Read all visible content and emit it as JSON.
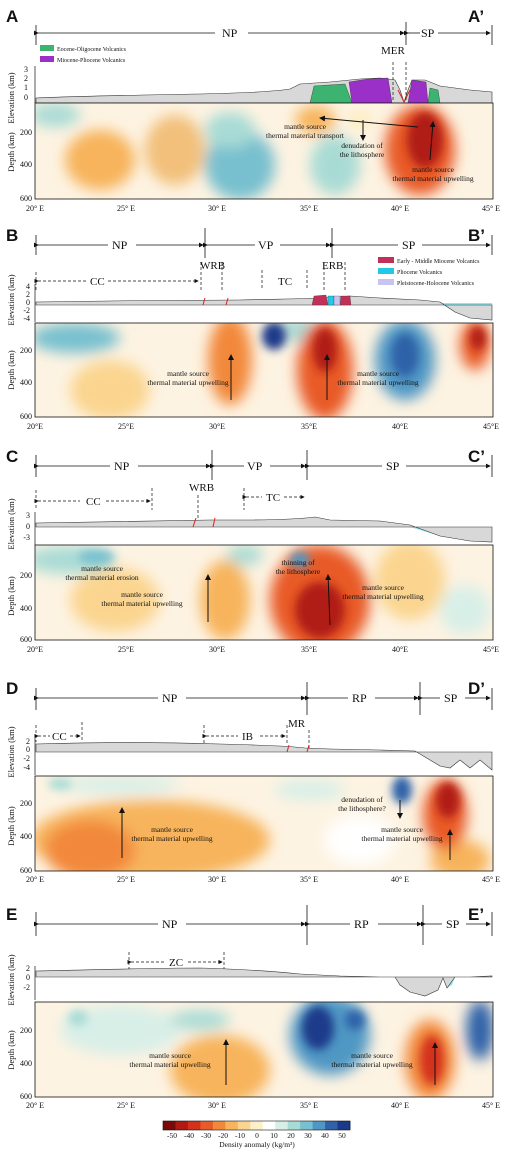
{
  "colorbar": {
    "ticks": [
      "-50",
      "-40",
      "-30",
      "-20",
      "-10",
      "0",
      "10",
      "20",
      "30",
      "40",
      "50"
    ],
    "label": "Density anomaly (kg/m³)",
    "colors": [
      "#7a0a0a",
      "#b01a12",
      "#d3311a",
      "#e85a26",
      "#f2883a",
      "#f7b45c",
      "#fbd590",
      "#fdefc8",
      "#ffffff",
      "#d8efe8",
      "#a9dbd5",
      "#78c0cf",
      "#4f97c4",
      "#2f62a8",
      "#1b3a8a"
    ]
  },
  "panels": [
    {
      "letter": "A",
      "letter_end": "A’",
      "provinces": [
        {
          "name": "NP"
        },
        {
          "name": "SP"
        }
      ],
      "domains": [
        {
          "name": "MER"
        }
      ],
      "legend": [
        {
          "label": "Eocene-Oligocene Volcanics",
          "color": "#3cb371"
        },
        {
          "label": "Miocene-Pliocene Volcanics",
          "color": "#9b30c8"
        }
      ],
      "elev_label": "Elevation (km)",
      "elev_ticks": [
        "3",
        "2",
        "1",
        "0"
      ],
      "depth_label": "Depth (km)",
      "depth_ticks": [
        "200",
        "400",
        "600"
      ],
      "x_ticks": [
        "20° E",
        "25° E",
        "30° E",
        "35° E",
        "40° E",
        "45° E"
      ],
      "annotations": [
        "mantle source",
        "thermal material transport",
        "denudation of",
        "the lithosphere",
        "mantle source",
        "thermal material upwelling"
      ]
    },
    {
      "letter": "B",
      "letter_end": "B’",
      "provinces": [
        {
          "name": "NP"
        },
        {
          "name": "VP"
        },
        {
          "name": "SP"
        }
      ],
      "domains": [
        {
          "name": "CC"
        },
        {
          "name": "WRB"
        },
        {
          "name": "TC"
        },
        {
          "name": "ERB"
        }
      ],
      "legend": [
        {
          "label": "Early - Middle Miocene Volcanics",
          "color": "#c03058"
        },
        {
          "label": "Pliocene Volcanics",
          "color": "#22c8e8"
        },
        {
          "label": "Pleistocene-Holocene Volcanics",
          "color": "#c8c4f0"
        }
      ],
      "elev_label": "Elevation (km)",
      "elev_ticks": [
        "4",
        "2",
        "0",
        "-2",
        "-4"
      ],
      "depth_label": "Depth (km)",
      "depth_ticks": [
        "200",
        "400",
        "600"
      ],
      "x_ticks": [
        "20°E",
        "25°E",
        "30°E",
        "35°E",
        "40°E",
        "45°E"
      ],
      "annotations": [
        "mantle source",
        "thermal material upwelling",
        "mantle source",
        "thermal material upwelling"
      ]
    },
    {
      "letter": "C",
      "letter_end": "C’",
      "provinces": [
        {
          "name": "NP"
        },
        {
          "name": "VP"
        },
        {
          "name": "SP"
        }
      ],
      "domains": [
        {
          "name": "CC"
        },
        {
          "name": "WRB"
        },
        {
          "name": "TC"
        }
      ],
      "legend": [],
      "elev_label": "Elevation (km)",
      "elev_ticks": [
        "3",
        "0",
        "-3"
      ],
      "depth_label": "Depth (km)",
      "depth_ticks": [
        "200",
        "400",
        "600"
      ],
      "x_ticks": [
        "20°E",
        "25°E",
        "30°E",
        "35°E",
        "40°E",
        "45°E"
      ],
      "annotations": [
        "mantle source",
        "thermal material erosion",
        "mantle source",
        "thermal material upwelling",
        "thinning of",
        "the lithosphere",
        "mantle source",
        "thermal material upwelling"
      ]
    },
    {
      "letter": "D",
      "letter_end": "D’",
      "provinces": [
        {
          "name": "NP"
        },
        {
          "name": "RP"
        },
        {
          "name": "SP"
        }
      ],
      "domains": [
        {
          "name": "CC"
        },
        {
          "name": "IB"
        },
        {
          "name": "MR"
        }
      ],
      "legend": [],
      "elev_label": "Elevation (km)",
      "elev_ticks": [
        "2",
        "0",
        "-2",
        "-4"
      ],
      "depth_label": "Depth (km)",
      "depth_ticks": [
        "200",
        "400",
        "600"
      ],
      "x_ticks": [
        "20° E",
        "25° E",
        "30° E",
        "35° E",
        "40° E",
        "45° E"
      ],
      "annotations": [
        "mantle source",
        "thermal material upwelling",
        "denudation of",
        "the lithosphere?",
        "mantle source",
        "thermal material upwelling"
      ]
    },
    {
      "letter": "E",
      "letter_end": "E’",
      "provinces": [
        {
          "name": "NP"
        },
        {
          "name": "RP"
        },
        {
          "name": "SP"
        }
      ],
      "domains": [
        {
          "name": "ZC"
        }
      ],
      "legend": [],
      "elev_label": "Elevation (km)",
      "elev_ticks": [
        "2",
        "0",
        "-2"
      ],
      "depth_label": "Depth (km)",
      "depth_ticks": [
        "200",
        "400",
        "600"
      ],
      "x_ticks": [
        "20° E",
        "25° E",
        "30° E",
        "35° E",
        "40° E",
        "45° E"
      ],
      "annotations": [
        "mantle source",
        "thermal material upwelling",
        "mantle source",
        "thermal material upwelling"
      ]
    }
  ]
}
